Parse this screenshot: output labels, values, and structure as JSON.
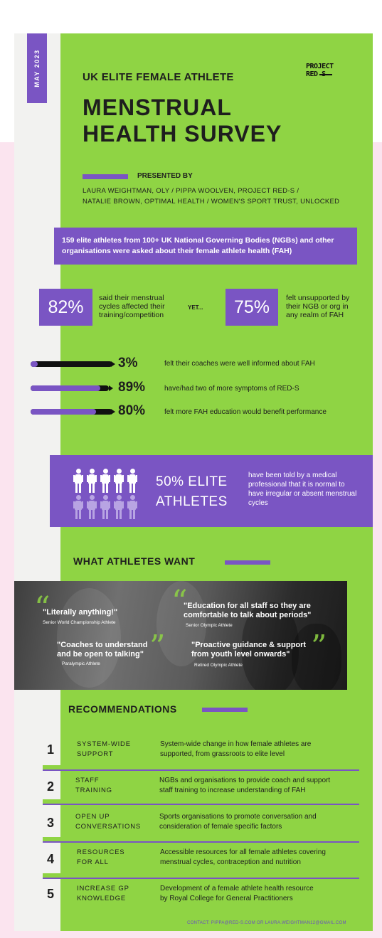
{
  "header": {
    "date": "MAY 2023",
    "logo": {
      "line1": "PROJECT",
      "line2": "RED S"
    },
    "subtitle": "UK ELITE FEMALE ATHLETE",
    "title_line1": "MENSTRUAL",
    "title_line2": "HEALTH SURVEY",
    "presented_by": "PRESENTED BY",
    "authors_line1": "LAURA WEIGHTMAN, OLY / PIPPA WOOLVEN, PROJECT RED-S /",
    "authors_line2": "NATALIE BROWN, OPTIMAL HEALTH / WOMEN'S SPORT TRUST, UNLOCKED"
  },
  "intro": "159 elite athletes from 100+ UK National Governing Bodies (NGBs) and other organisations were asked about their female athlete health (FAH)",
  "stats": [
    {
      "value": "82%",
      "text": [
        "said their menstrual",
        "cycles affected their",
        "training/competition"
      ]
    },
    {
      "value": "75%",
      "text": [
        "felt unsupported by",
        "their NGB or org in",
        "any realm of FAH"
      ]
    }
  ],
  "yet": "YET...",
  "bars": [
    {
      "pct": "3%",
      "fraction": 0.03,
      "text": "felt their coaches were well informed about FAH"
    },
    {
      "pct": "89%",
      "fraction": 0.89,
      "text": "have/had two of more symptoms of RED-S"
    },
    {
      "pct": "80%",
      "fraction": 0.8,
      "text": "felt more FAH education would benefit performance"
    }
  ],
  "elite": {
    "line1": "50% ELITE",
    "line2": "ATHLETES",
    "desc": "have been told by a medical professional that it is normal to have irregular or absent menstrual cycles"
  },
  "want": {
    "heading": "WHAT ATHLETES WANT",
    "quotes": [
      {
        "text": "\"Literally anything!\"",
        "attr": "Senior World Championship Athlete"
      },
      {
        "text_line1": "\"Education for all staff so they are",
        "text_line2": "comfortable to talk about periods\"",
        "attr": "Senior Olympic Athlete"
      },
      {
        "text_line1": "\"Coaches to understand",
        "text_line2": "and be open to talking\"",
        "attr": "Paralympic Athlete"
      },
      {
        "text_line1": "\"Proactive guidance & support",
        "text_line2": "from youth level onwards\"",
        "attr": "Retired Olympic Athlete"
      }
    ]
  },
  "recommendations": {
    "heading": "RECOMMENDATIONS",
    "items": [
      {
        "num": "1",
        "label_line1": "SYSTEM-WIDE",
        "label_line2": "SUPPORT",
        "desc_line1": "System-wide change in how female athletes are",
        "desc_line2": "supported, from grassroots to elite level"
      },
      {
        "num": "2",
        "label_line1": "STAFF",
        "label_line2": "TRAINING",
        "desc_line1": "NGBs and organisations to provide coach and support",
        "desc_line2": "staff training to increase understanding of FAH"
      },
      {
        "num": "3",
        "label_line1": "OPEN UP",
        "label_line2": "CONVERSATIONS",
        "desc_line1": "Sports organisations to promote conversation and",
        "desc_line2": "consideration of female specific factors"
      },
      {
        "num": "4",
        "label_line1": "RESOURCES",
        "label_line2": "FOR ALL",
        "desc_line1": "Accessible resources for all female athletes covering",
        "desc_line2": "menstrual cycles, contraception and nutrition"
      },
      {
        "num": "5",
        "label_line1": "INCREASE GP",
        "label_line2": "KNOWLEDGE",
        "desc_line1": "Development of a female athlete health resource",
        "desc_line2": "by Royal College for General Practitioners"
      }
    ]
  },
  "contact": "CONTACT: PIPPA@RED-S.COM OR LAURA.WEIGHTMAN12@GMAIL.COM",
  "colors": {
    "green": "#8fd444",
    "purple": "#7a55c3",
    "dark": "#1e1e1e",
    "pink": "#fbe4ef"
  }
}
